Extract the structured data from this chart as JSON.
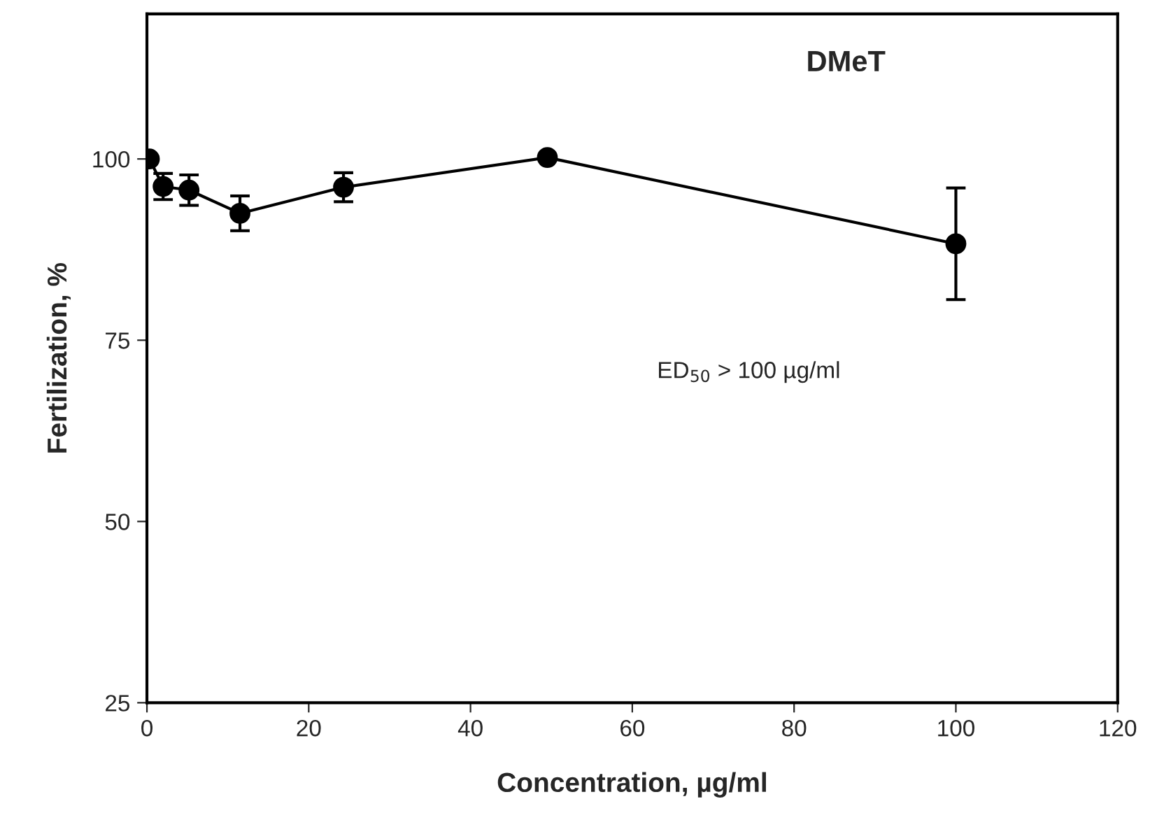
{
  "chart_data": {
    "type": "line",
    "title": "DMeT",
    "xlabel": "Concentration, µg/ml",
    "ylabel": "Fertilization, %",
    "annotations": [
      "ED$_{50}$ > 100 µg/ml"
    ],
    "x": [
      0.3,
      2,
      5.2,
      11.5,
      24.3,
      49.5,
      100
    ],
    "series": [
      {
        "color": "#000000",
        "values": [
          100,
          96.2,
          95.7,
          92.5,
          96.1,
          100.2,
          88.3
        ],
        "errors": [
          null,
          1.8,
          2.1,
          2.4,
          2,
          null,
          7.7
        ]
      }
    ],
    "xlim": [
      0,
      120
    ],
    "xticks": [
      0,
      20,
      40,
      60,
      80,
      100,
      120
    ],
    "ylim": [
      25,
      120
    ],
    "yticks": [
      25,
      50,
      75,
      100
    ],
    "grid": false,
    "marker": "circle",
    "line_style": "solid"
  }
}
